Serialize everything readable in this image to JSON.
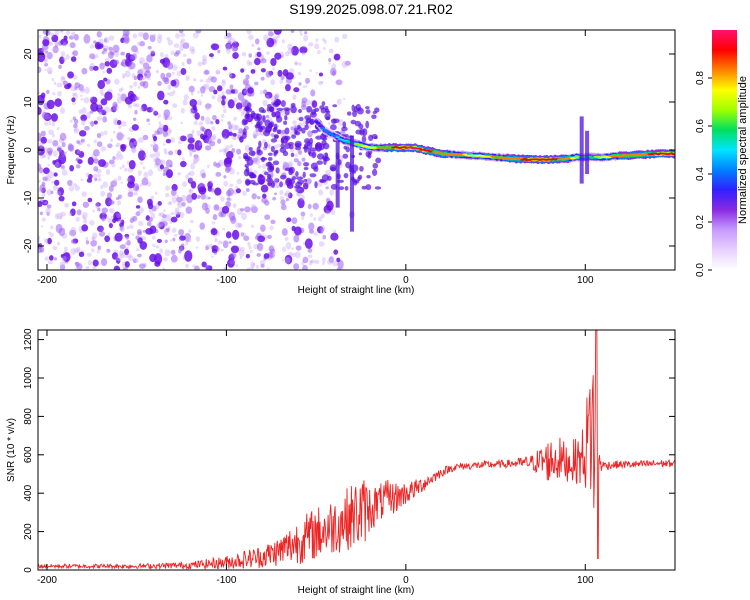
{
  "title": "S199.2025.098.07.21.R02",
  "colors": {
    "snr_line": "#ee2222",
    "ridge": "#ff1a1a",
    "scatter": "#7a1cf0",
    "colorbar": [
      "#ffffff",
      "#e8d0ff",
      "#c79bff",
      "#8a2be2",
      "#3020ff",
      "#0080ff",
      "#00e5ff",
      "#00e060",
      "#a0ff00",
      "#ffff00",
      "#ff8000",
      "#ff0000",
      "#ff1070"
    ]
  },
  "chart_data": [
    {
      "type": "heatmap",
      "id": "spectrogram",
      "xlabel": "Height of straight line (km)",
      "ylabel": "Frequency (Hz)",
      "xlim": [
        -205,
        150
      ],
      "ylim": [
        -25,
        25
      ],
      "xticks": [
        -200,
        -100,
        0,
        100
      ],
      "yticks": [
        20,
        10,
        0,
        -10,
        -20
      ],
      "colorbar": {
        "label": "Normalized spectral amplitude",
        "range": [
          0,
          1
        ],
        "ticks": [
          "0.0",
          "0.2",
          "0.4",
          "0.6",
          "0.8"
        ],
        "tick_values": [
          0,
          0.2,
          0.4,
          0.6,
          0.8
        ]
      },
      "ridge": {
        "x": [
          -50,
          -45,
          -40,
          -35,
          -30,
          -25,
          -20,
          -10,
          0,
          5,
          10,
          20,
          30,
          40,
          50,
          60,
          70,
          80,
          90,
          95,
          100,
          105,
          110,
          120,
          130,
          140,
          150
        ],
        "y": [
          6,
          4,
          3,
          2,
          1.5,
          1,
          0.5,
          0.5,
          0.5,
          0.5,
          0,
          -0.8,
          -1,
          -1.2,
          -1.5,
          -1.8,
          -2,
          -2,
          -1.8,
          -1.5,
          -1.5,
          -1.5,
          -1.5,
          -1.2,
          -1,
          -0.8,
          -0.8
        ],
        "amplitude": [
          0.35,
          0.4,
          0.45,
          0.5,
          0.6,
          0.7,
          0.75,
          0.85,
          0.95,
          1.0,
          0.9,
          0.85,
          0.8,
          0.75,
          0.8,
          0.85,
          0.9,
          0.9,
          0.85,
          0.7,
          0.55,
          0.6,
          0.75,
          0.85,
          0.85,
          0.9,
          0.9
        ]
      },
      "noise_region_x": [
        -205,
        -50
      ]
    },
    {
      "type": "line",
      "id": "snr",
      "xlabel": "Height of straight line (km)",
      "ylabel": "SNR (10 * v/v)",
      "xlim": [
        -205,
        150
      ],
      "ylim": [
        0,
        1250
      ],
      "xticks": [
        -200,
        -100,
        0,
        100
      ],
      "yticks": [
        0,
        200,
        400,
        600,
        800,
        1000,
        1200
      ],
      "envelope": {
        "x": [
          -205,
          -150,
          -120,
          -100,
          -80,
          -70,
          -60,
          -50,
          -40,
          -30,
          -25,
          -20,
          -15,
          -10,
          -5,
          0,
          5,
          10,
          15,
          20,
          25,
          30,
          40,
          50,
          60,
          70,
          75,
          80,
          85,
          90,
          95,
          98,
          100,
          102,
          104,
          106,
          108,
          110,
          120,
          130,
          140,
          150
        ],
        "y": [
          20,
          20,
          25,
          40,
          70,
          100,
          150,
          190,
          230,
          280,
          300,
          320,
          350,
          370,
          380,
          400,
          420,
          450,
          480,
          510,
          530,
          540,
          545,
          550,
          555,
          560,
          565,
          570,
          580,
          560,
          570,
          580,
          620,
          700,
          800,
          450,
          560,
          545,
          550,
          550,
          555,
          555
        ],
        "noise": [
          10,
          12,
          18,
          35,
          60,
          80,
          120,
          140,
          150,
          170,
          200,
          130,
          100,
          100,
          80,
          60,
          50,
          40,
          30,
          25,
          20,
          20,
          20,
          20,
          22,
          40,
          80,
          120,
          120,
          100,
          120,
          150,
          200,
          350,
          500,
          450,
          60,
          25,
          20,
          20,
          20,
          20
        ]
      }
    }
  ]
}
